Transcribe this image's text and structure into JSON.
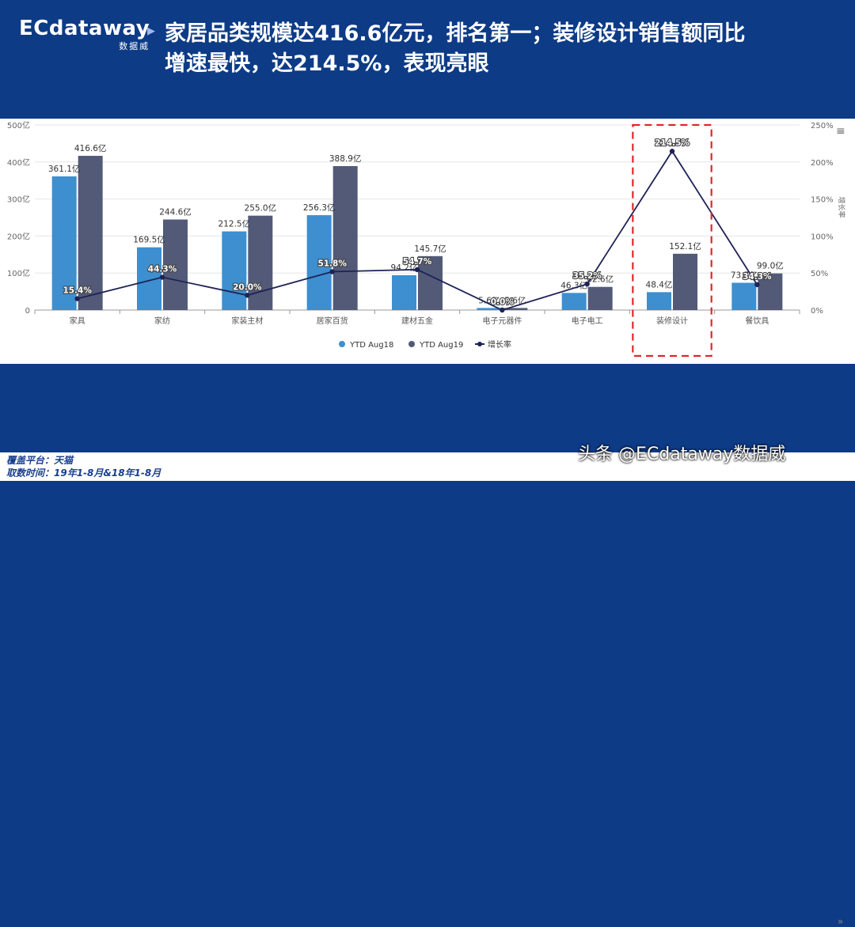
{
  "logo": {
    "main": "ECdataway",
    "sub": "数据威"
  },
  "header": {
    "title_line1": "家居品类规模达416.6亿元，排名第一；装修设计销售额同比",
    "title_line2": "增速最快，达214.5%，表现亮眼"
  },
  "footer": {
    "platform": "覆盖平台：天猫",
    "period": "取数时间：19年1-8月&18年1-8月",
    "watermark": "头条 @ECdataway数据威"
  },
  "colors": {
    "bar18": "#3d8fcf",
    "bar19": "#535a78",
    "line": "#1e2356",
    "highlight": "#e0262b",
    "header_bg": "#0d3b86"
  },
  "chart_data": {
    "type": "bar",
    "categories": [
      "家具",
      "家纺",
      "家装主材",
      "居家百货",
      "建材五金",
      "电子元器件",
      "电子电工",
      "装修设计",
      "餐饮具"
    ],
    "series": [
      {
        "name": "YTD Aug18",
        "values": [
          361.1,
          169.5,
          212.5,
          256.3,
          94.2,
          5.6,
          46.3,
          48.4,
          73.7
        ],
        "labels": [
          "361.1亿",
          "169.5亿",
          "212.5亿",
          "256.3亿",
          "94.2亿",
          "5.6亿",
          "46.3亿",
          "48.4亿",
          "73.7亿"
        ]
      },
      {
        "name": "YTD Aug19",
        "values": [
          416.6,
          244.6,
          255.0,
          388.9,
          145.7,
          5.6,
          62.6,
          152.1,
          99.0
        ],
        "labels": [
          "416.6亿",
          "244.6亿",
          "255.0亿",
          "388.9亿",
          "145.7亿",
          "5.6亿",
          "62.6亿",
          "152.1亿",
          "99.0亿"
        ]
      },
      {
        "name": "增长率",
        "values": [
          15.4,
          44.3,
          20.0,
          51.8,
          54.7,
          0.0,
          35.2,
          214.5,
          34.3
        ],
        "labels": [
          "15.4%",
          "44.3%",
          "20.0%",
          "51.8%",
          "54.7%",
          "0.0%",
          "35.2%",
          "214.5%",
          "34.3%"
        ]
      }
    ],
    "y_left": {
      "ticks": [
        "0",
        "100亿",
        "200亿",
        "300亿",
        "400亿",
        "500亿"
      ],
      "ylim": [
        0,
        500
      ]
    },
    "y_right": {
      "ticks": [
        "0%",
        "50%",
        "100%",
        "150%",
        "200%",
        "250%"
      ],
      "ylim": [
        0,
        250
      ],
      "label": "增长率"
    },
    "highlight_category": "装修设计",
    "legend_position": "bottom"
  }
}
